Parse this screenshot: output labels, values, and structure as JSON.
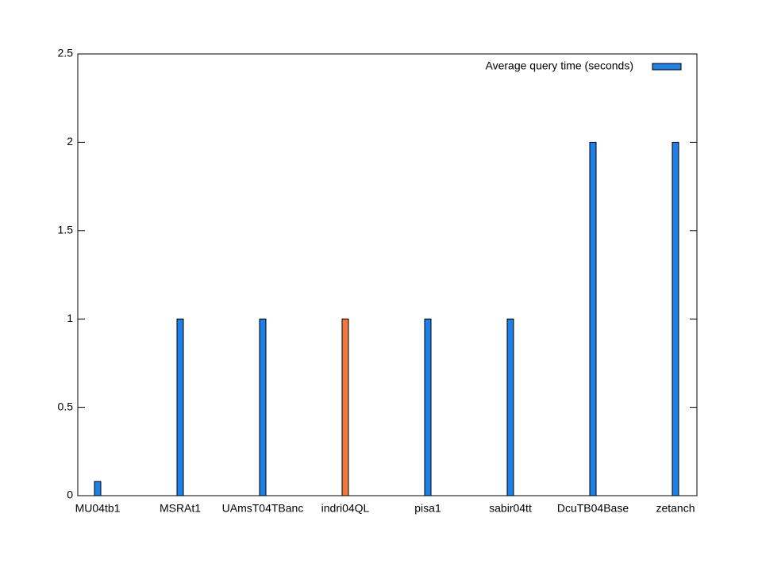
{
  "chart_data": {
    "type": "bar",
    "categories": [
      "MU04tb1",
      "MSRAt1",
      "UAmsT04TBanc",
      "indri04QL",
      "pisa1",
      "sabir04tt",
      "DcuTB04Base",
      "zetanch"
    ],
    "series": [
      {
        "name": "Average query time (seconds)",
        "color": "#1e7fe6",
        "colors": [
          "#1e7fe6",
          "#1e7fe6",
          "#1e7fe6",
          "#f0783c",
          "#1e7fe6",
          "#1e7fe6",
          "#1e7fe6",
          "#1e7fe6"
        ],
        "values": [
          0.08,
          1,
          1,
          1,
          1,
          1,
          2,
          2
        ]
      }
    ],
    "ylim": [
      0,
      2.5
    ],
    "yticks": [
      0,
      0.5,
      1,
      1.5,
      2,
      2.5
    ],
    "legend": "top-right"
  }
}
